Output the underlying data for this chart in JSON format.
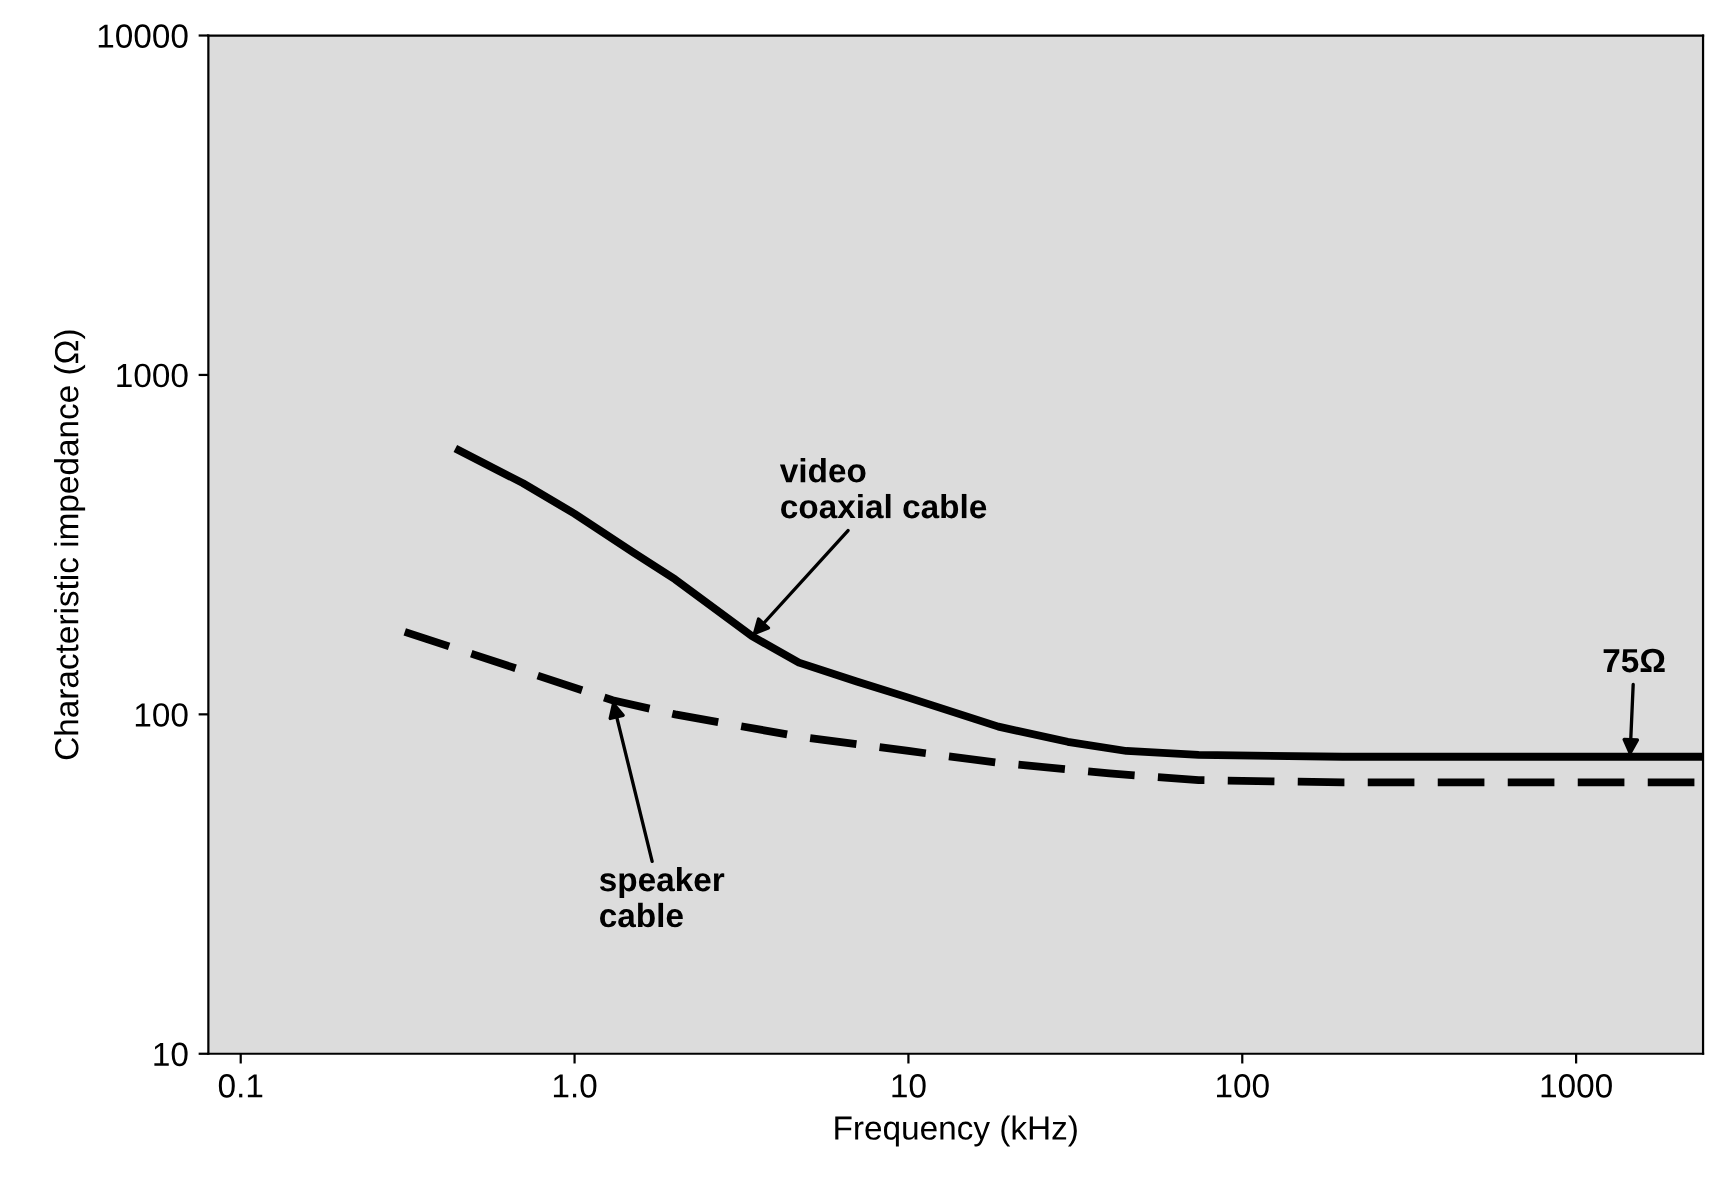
{
  "chart_data": {
    "type": "line",
    "xlabel": "Frequency (kHz)",
    "ylabel": "Characteristic impedance (Ω)",
    "log": "xy",
    "xlim": [
      0.08,
      2400
    ],
    "ylim": [
      10,
      10000
    ],
    "xticks": [
      0.1,
      {
        "value": 1,
        "label": "1.0"
      },
      10,
      100,
      1000
    ],
    "yticks": [
      10,
      100,
      1000,
      10000
    ],
    "grid": false,
    "legend": false,
    "series": [
      {
        "color": "#000000",
        "line_style": "solid",
        "x": [
          0.45,
          0.7,
          1,
          1.5,
          2,
          3.4,
          4.7,
          7,
          10,
          18.6,
          30,
          45,
          74,
          200,
          500,
          1000,
          2400
        ],
        "values": [
          600,
          480,
          390,
          300,
          250,
          170,
          142,
          125,
          112,
          92,
          83,
          78,
          76,
          75,
          75,
          75,
          75
        ]
      },
      {
        "color": "#000000",
        "line_style": "dashed",
        "x": [
          0.31,
          0.5,
          1.3,
          2,
          4.7,
          10,
          18.6,
          40,
          74,
          200,
          1000,
          2400
        ],
        "values": [
          175,
          150,
          110,
          100,
          86,
          78,
          72,
          67,
          64,
          63,
          63,
          63
        ]
      }
    ],
    "annotations": [
      {
        "text": "video\ncoaxial cable",
        "x": 3.4,
        "y": 170
      },
      {
        "text": "speaker\ncable",
        "x": 1.3,
        "y": 110
      },
      {
        "text": "75Ω",
        "x": 1450,
        "y": 75
      }
    ]
  }
}
